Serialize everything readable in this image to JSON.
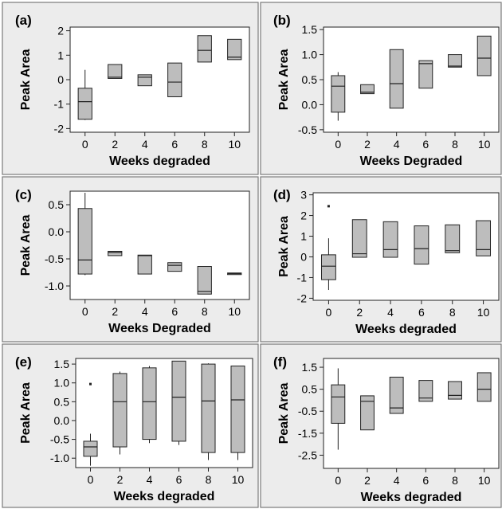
{
  "chart_data": [
    {
      "panel_label": "(a)",
      "type": "boxplot",
      "xlabel": "Weeks degraded",
      "ylabel": "Peak Area",
      "ylim": [
        -2.15,
        2.15
      ],
      "yticks": [
        -2,
        -1,
        0,
        1,
        2
      ],
      "ytick_labels": [
        "-2",
        "-1",
        "0",
        "1",
        "2"
      ],
      "categories": [
        "0",
        "2",
        "4",
        "6",
        "8",
        "10"
      ],
      "boxes": [
        {
          "min": -1.65,
          "q1": -1.62,
          "median": -0.9,
          "q3": -0.35,
          "max": 0.4,
          "outliers": []
        },
        {
          "min": 0.05,
          "q1": 0.05,
          "median": 0.1,
          "q3": 0.62,
          "max": 0.62,
          "outliers": []
        },
        {
          "min": -0.25,
          "q1": -0.25,
          "median": 0.1,
          "q3": 0.2,
          "max": 0.2,
          "outliers": []
        },
        {
          "min": -0.7,
          "q1": -0.7,
          "median": -0.1,
          "q3": 0.68,
          "max": 0.68,
          "outliers": []
        },
        {
          "min": 0.72,
          "q1": 0.72,
          "median": 1.2,
          "q3": 1.8,
          "max": 1.8,
          "outliers": []
        },
        {
          "min": 0.82,
          "q1": 0.82,
          "median": 0.92,
          "q3": 1.65,
          "max": 1.65,
          "outliers": []
        }
      ]
    },
    {
      "panel_label": "(b)",
      "type": "boxplot",
      "xlabel": "Weeks Degraded",
      "ylabel": "Peak Area",
      "ylim": [
        -0.55,
        1.55
      ],
      "yticks": [
        -0.5,
        0.0,
        0.5,
        1.0,
        1.5
      ],
      "ytick_labels": [
        "-0.5",
        "0.0",
        "0.5",
        "1.0",
        "1.5"
      ],
      "categories": [
        "0",
        "2",
        "4",
        "6",
        "8",
        "10"
      ],
      "boxes": [
        {
          "min": -0.32,
          "q1": -0.15,
          "median": 0.37,
          "q3": 0.58,
          "max": 0.65,
          "outliers": []
        },
        {
          "min": 0.22,
          "q1": 0.22,
          "median": 0.25,
          "q3": 0.4,
          "max": 0.4,
          "outliers": []
        },
        {
          "min": -0.07,
          "q1": -0.07,
          "median": 0.42,
          "q3": 1.1,
          "max": 1.1,
          "outliers": []
        },
        {
          "min": 0.33,
          "q1": 0.33,
          "median": 0.82,
          "q3": 0.88,
          "max": 0.88,
          "outliers": []
        },
        {
          "min": 0.75,
          "q1": 0.75,
          "median": 0.77,
          "q3": 1.0,
          "max": 1.0,
          "outliers": []
        },
        {
          "min": 0.58,
          "q1": 0.58,
          "median": 0.93,
          "q3": 1.37,
          "max": 1.37,
          "outliers": []
        }
      ]
    },
    {
      "panel_label": "(c)",
      "type": "boxplot",
      "xlabel": "Weeks Degraded",
      "ylabel": "Peak Area",
      "ylim": [
        -1.25,
        0.75
      ],
      "yticks": [
        -1.0,
        -0.5,
        0.0,
        0.5
      ],
      "ytick_labels": [
        "-1.0",
        "-0.5",
        "0.0",
        "0.5"
      ],
      "categories": [
        "0",
        "2",
        "4",
        "6",
        "8",
        "10"
      ],
      "boxes": [
        {
          "min": -0.8,
          "q1": -0.78,
          "median": -0.52,
          "q3": 0.43,
          "max": 0.72,
          "outliers": []
        },
        {
          "min": -0.44,
          "q1": -0.44,
          "median": -0.38,
          "q3": -0.36,
          "max": -0.36,
          "outliers": []
        },
        {
          "min": -0.78,
          "q1": -0.78,
          "median": -0.44,
          "q3": -0.43,
          "max": -0.43,
          "outliers": []
        },
        {
          "min": -0.73,
          "q1": -0.73,
          "median": -0.62,
          "q3": -0.57,
          "max": -0.57,
          "outliers": []
        },
        {
          "min": -1.15,
          "q1": -1.15,
          "median": -1.1,
          "q3": -0.64,
          "max": -0.64,
          "outliers": []
        },
        {
          "min": -0.79,
          "q1": -0.79,
          "median": -0.77,
          "q3": -0.76,
          "max": -0.76,
          "outliers": []
        }
      ]
    },
    {
      "panel_label": "(d)",
      "type": "boxplot",
      "xlabel": "Weeks degraded",
      "ylabel": "Peak Area",
      "ylim": [
        -2.1,
        3.1
      ],
      "yticks": [
        -2,
        -1,
        0,
        1,
        2,
        3
      ],
      "ytick_labels": [
        "-2",
        "-1",
        "0",
        "1",
        "2",
        "3"
      ],
      "categories": [
        "0",
        "2",
        "4",
        "6",
        "8",
        "10"
      ],
      "boxes": [
        {
          "min": -1.6,
          "q1": -1.1,
          "median": -0.45,
          "q3": 0.1,
          "max": 0.9,
          "outliers": [
            2.45
          ]
        },
        {
          "min": -0.02,
          "q1": -0.02,
          "median": 0.15,
          "q3": 1.8,
          "max": 1.8,
          "outliers": []
        },
        {
          "min": -0.02,
          "q1": -0.02,
          "median": 0.35,
          "q3": 1.7,
          "max": 1.7,
          "outliers": []
        },
        {
          "min": -0.35,
          "q1": -0.35,
          "median": 0.4,
          "q3": 1.5,
          "max": 1.5,
          "outliers": []
        },
        {
          "min": 0.2,
          "q1": 0.2,
          "median": 0.3,
          "q3": 1.55,
          "max": 1.55,
          "outliers": []
        },
        {
          "min": 0.05,
          "q1": 0.05,
          "median": 0.35,
          "q3": 1.75,
          "max": 1.75,
          "outliers": []
        }
      ]
    },
    {
      "panel_label": "(e)",
      "type": "boxplot",
      "xlabel": "Weeks degraded",
      "ylabel": "Peak Area",
      "ylim": [
        -1.25,
        1.65
      ],
      "yticks": [
        -1.0,
        -0.5,
        0.0,
        0.5,
        1.0,
        1.5
      ],
      "ytick_labels": [
        "-1.0",
        "-0.5",
        "0.0",
        "0.5",
        "1.0",
        "1.5"
      ],
      "categories": [
        "0",
        "2",
        "4",
        "6",
        "8",
        "10"
      ],
      "boxes": [
        {
          "min": -1.2,
          "q1": -0.95,
          "median": -0.7,
          "q3": -0.55,
          "max": -0.35,
          "outliers": [
            0.97
          ]
        },
        {
          "min": -0.9,
          "q1": -0.7,
          "median": 0.5,
          "q3": 1.25,
          "max": 1.3,
          "outliers": []
        },
        {
          "min": -0.6,
          "q1": -0.5,
          "median": 0.5,
          "q3": 1.4,
          "max": 1.45,
          "outliers": []
        },
        {
          "min": -0.65,
          "q1": -0.55,
          "median": 0.62,
          "q3": 1.58,
          "max": 1.58,
          "outliers": []
        },
        {
          "min": -1.05,
          "q1": -0.85,
          "median": 0.52,
          "q3": 1.5,
          "max": 1.52,
          "outliers": []
        },
        {
          "min": -1.05,
          "q1": -0.85,
          "median": 0.55,
          "q3": 1.45,
          "max": 1.45,
          "outliers": []
        }
      ]
    },
    {
      "panel_label": "(f)",
      "type": "boxplot",
      "xlabel": "Weeks degraded",
      "ylabel": "Peak Area",
      "ylim": [
        -3.1,
        1.9
      ],
      "yticks": [
        -2.5,
        -1.5,
        -0.5,
        0.5,
        1.5
      ],
      "ytick_labels": [
        "-2.5",
        "-1.5",
        "-0.5",
        "0.5",
        "1.5"
      ],
      "categories": [
        "0",
        "2",
        "4",
        "6",
        "8",
        "10"
      ],
      "boxes": [
        {
          "min": -2.25,
          "q1": -1.05,
          "median": 0.15,
          "q3": 0.7,
          "max": 1.45,
          "outliers": []
        },
        {
          "min": -1.35,
          "q1": -1.35,
          "median": -0.05,
          "q3": 0.2,
          "max": 0.2,
          "outliers": []
        },
        {
          "min": -0.6,
          "q1": -0.6,
          "median": -0.35,
          "q3": 1.05,
          "max": 1.05,
          "outliers": []
        },
        {
          "min": -0.05,
          "q1": -0.05,
          "median": 0.1,
          "q3": 0.9,
          "max": 0.9,
          "outliers": []
        },
        {
          "min": 0.05,
          "q1": 0.05,
          "median": 0.22,
          "q3": 0.85,
          "max": 0.85,
          "outliers": []
        },
        {
          "min": -0.05,
          "q1": -0.05,
          "median": 0.5,
          "q3": 1.25,
          "max": 1.25,
          "outliers": []
        }
      ]
    }
  ],
  "colors": {
    "panel_bg": "#ececec",
    "plot_bg": "#ffffff",
    "box_fill": "#bdbdbd",
    "stroke": "#222222",
    "panel_border": "#7a7a7a"
  }
}
